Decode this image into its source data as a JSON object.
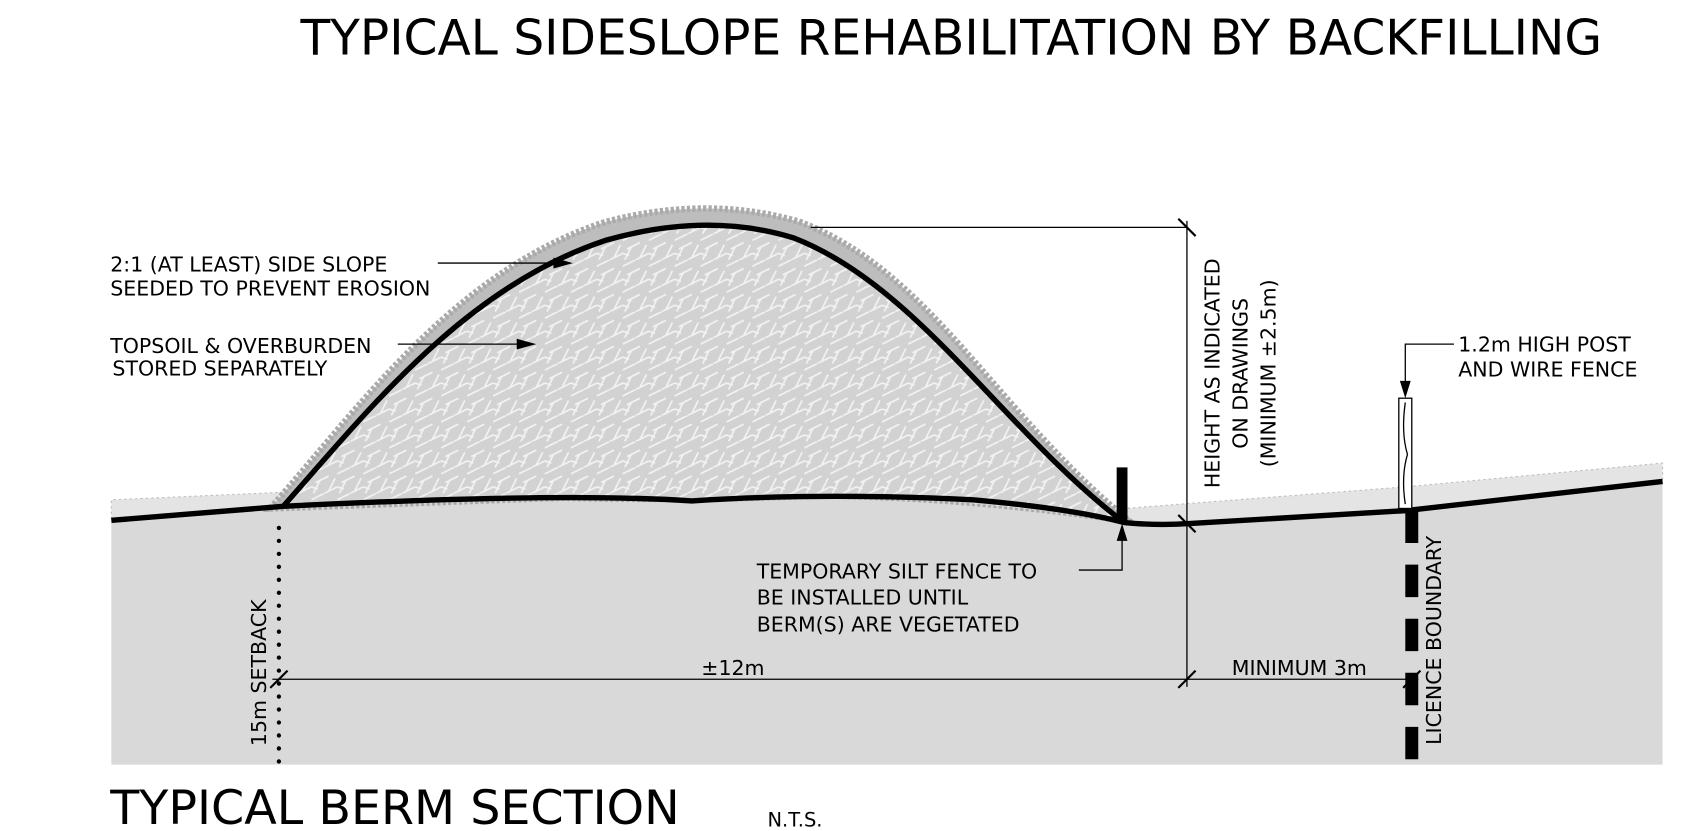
{
  "title": "TYPICAL SIDESLOPE REHABILITATION BY BACKFILLING",
  "labels": {
    "side_slope": [
      "2:1 (AT LEAST) SIDE SLOPE",
      "SEEDED TO PREVENT EROSION"
    ],
    "topsoil": [
      "TOPSOIL & OVERBURDEN",
      "STORED SEPARATELY"
    ],
    "height": [
      "HEIGHT AS INDICATED",
      "ON DRAWINGS",
      "(MINIMUM ±2.5m)"
    ],
    "fence": [
      "1.2m HIGH POST",
      "AND WIRE FENCE"
    ],
    "silt_fence": [
      "TEMPORARY SILT FENCE TO",
      "BE INSTALLED UNTIL",
      "BERM(S) ARE VEGETATED"
    ],
    "width": "±12m",
    "minimum": "MINIMUM 3m",
    "setback": "15m SETBACK",
    "boundary": "LICENCE BOUNDARY"
  },
  "footer": {
    "title": "TYPICAL BERM SECTION",
    "note": "N.T.S."
  }
}
